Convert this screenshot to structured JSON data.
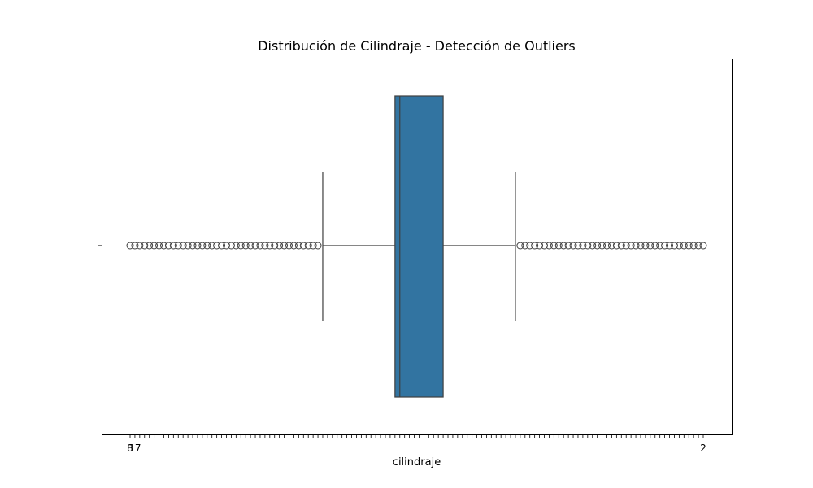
{
  "chart_data": {
    "type": "boxplot",
    "title": "Distribución de Cilindraje - Detección de Outliers",
    "xlabel": "cilindraje",
    "ylabel": "",
    "orientation": "horizontal",
    "x_axis": "categorical",
    "grid": false,
    "legend": "none",
    "box_color": "#3274a1",
    "line_color": "#3f3f3f",
    "category_count": 120,
    "categories_first": [
      "8",
      "17"
    ],
    "categories_last": [
      "2"
    ],
    "box": {
      "whisker_low_index": 40,
      "q1_index": 55,
      "median_index": 56,
      "q3_index": 65,
      "whisker_high_index": 80
    },
    "outlier_indices": [
      0,
      1,
      2,
      3,
      4,
      5,
      6,
      7,
      8,
      9,
      10,
      11,
      12,
      13,
      14,
      15,
      16,
      17,
      18,
      19,
      20,
      21,
      22,
      23,
      24,
      25,
      26,
      27,
      28,
      29,
      30,
      31,
      32,
      33,
      34,
      35,
      36,
      37,
      38,
      39,
      81,
      82,
      83,
      84,
      85,
      86,
      87,
      88,
      89,
      90,
      91,
      92,
      93,
      94,
      95,
      96,
      97,
      98,
      99,
      100,
      101,
      102,
      103,
      104,
      105,
      106,
      107,
      108,
      109,
      110,
      111,
      112,
      113,
      114,
      115,
      116,
      117,
      118,
      119
    ]
  }
}
